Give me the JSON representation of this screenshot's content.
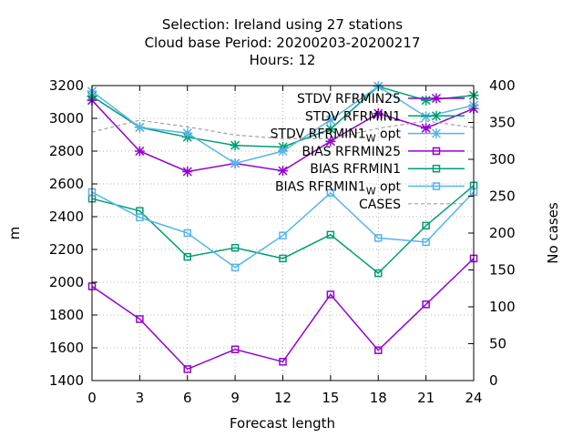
{
  "chart_data": {
    "type": "line",
    "title_lines": [
      "Selection: Ireland using    27 stations",
      "Cloud base   Period: 20200203-20200217",
      "Hours:  12"
    ],
    "xlabel": "Forecast length",
    "ylabel": "m",
    "y2label": "No cases",
    "x": [
      0,
      3,
      6,
      9,
      12,
      15,
      18,
      21,
      24
    ],
    "xticks": [
      "0",
      "3",
      "6",
      "9",
      "12",
      "15",
      "18",
      "21",
      "24"
    ],
    "xlim": [
      0,
      24
    ],
    "ylim": [
      1400,
      3200
    ],
    "yticks": [
      "1400",
      "1600",
      "1800",
      "2000",
      "2200",
      "2400",
      "2600",
      "2800",
      "3000",
      "3200"
    ],
    "y2lim": [
      0,
      400
    ],
    "y2ticks": [
      "0",
      "50",
      "100",
      "150",
      "200",
      "250",
      "300",
      "350",
      "400"
    ],
    "grid": true,
    "legend_position": "top-right",
    "series": [
      {
        "name": "STDV RFRMIN25",
        "sub": "",
        "suffix": "",
        "color": "#9400d3",
        "marker": "star",
        "dash": false,
        "axis": "y",
        "values": [
          3110,
          2800,
          2675,
          2725,
          2680,
          2860,
          3030,
          2940,
          3060
        ]
      },
      {
        "name": "STDV RFRMIN1",
        "sub": "",
        "suffix": "",
        "color": "#009e73",
        "marker": "star",
        "dash": false,
        "axis": "y",
        "values": [
          3135,
          2945,
          2885,
          2835,
          2825,
          2935,
          3195,
          3110,
          3140
        ]
      },
      {
        "name": "STDV RFRMIN1",
        "sub": "W",
        "suffix": " opt",
        "color": "#56b4e9",
        "marker": "star",
        "dash": false,
        "axis": "y",
        "values": [
          3165,
          2945,
          2910,
          2725,
          2800,
          2990,
          3195,
          3010,
          3080
        ]
      },
      {
        "name": "BIAS RFRMIN25",
        "sub": "",
        "suffix": "",
        "color": "#9400d3",
        "marker": "square",
        "dash": false,
        "axis": "y",
        "values": [
          1975,
          1775,
          1470,
          1590,
          1515,
          1925,
          1585,
          1865,
          2145
        ]
      },
      {
        "name": "BIAS RFRMIN1",
        "sub": "",
        "suffix": "",
        "color": "#009e73",
        "marker": "square",
        "dash": false,
        "axis": "y",
        "values": [
          2510,
          2435,
          2155,
          2210,
          2145,
          2290,
          2055,
          2345,
          2590
        ]
      },
      {
        "name": "BIAS RFRMIN1",
        "sub": "W",
        "suffix": " opt",
        "color": "#56b4e9",
        "marker": "square",
        "dash": false,
        "axis": "y",
        "values": [
          2550,
          2395,
          2300,
          2090,
          2285,
          2545,
          2270,
          2245,
          2550
        ]
      },
      {
        "name": "CASES",
        "sub": "",
        "suffix": "",
        "color": "#a0a0a0",
        "marker": "none",
        "dash": true,
        "axis": "y2",
        "values": [
          337,
          353,
          344,
          333,
          328,
          328,
          342,
          352,
          343
        ]
      }
    ]
  }
}
